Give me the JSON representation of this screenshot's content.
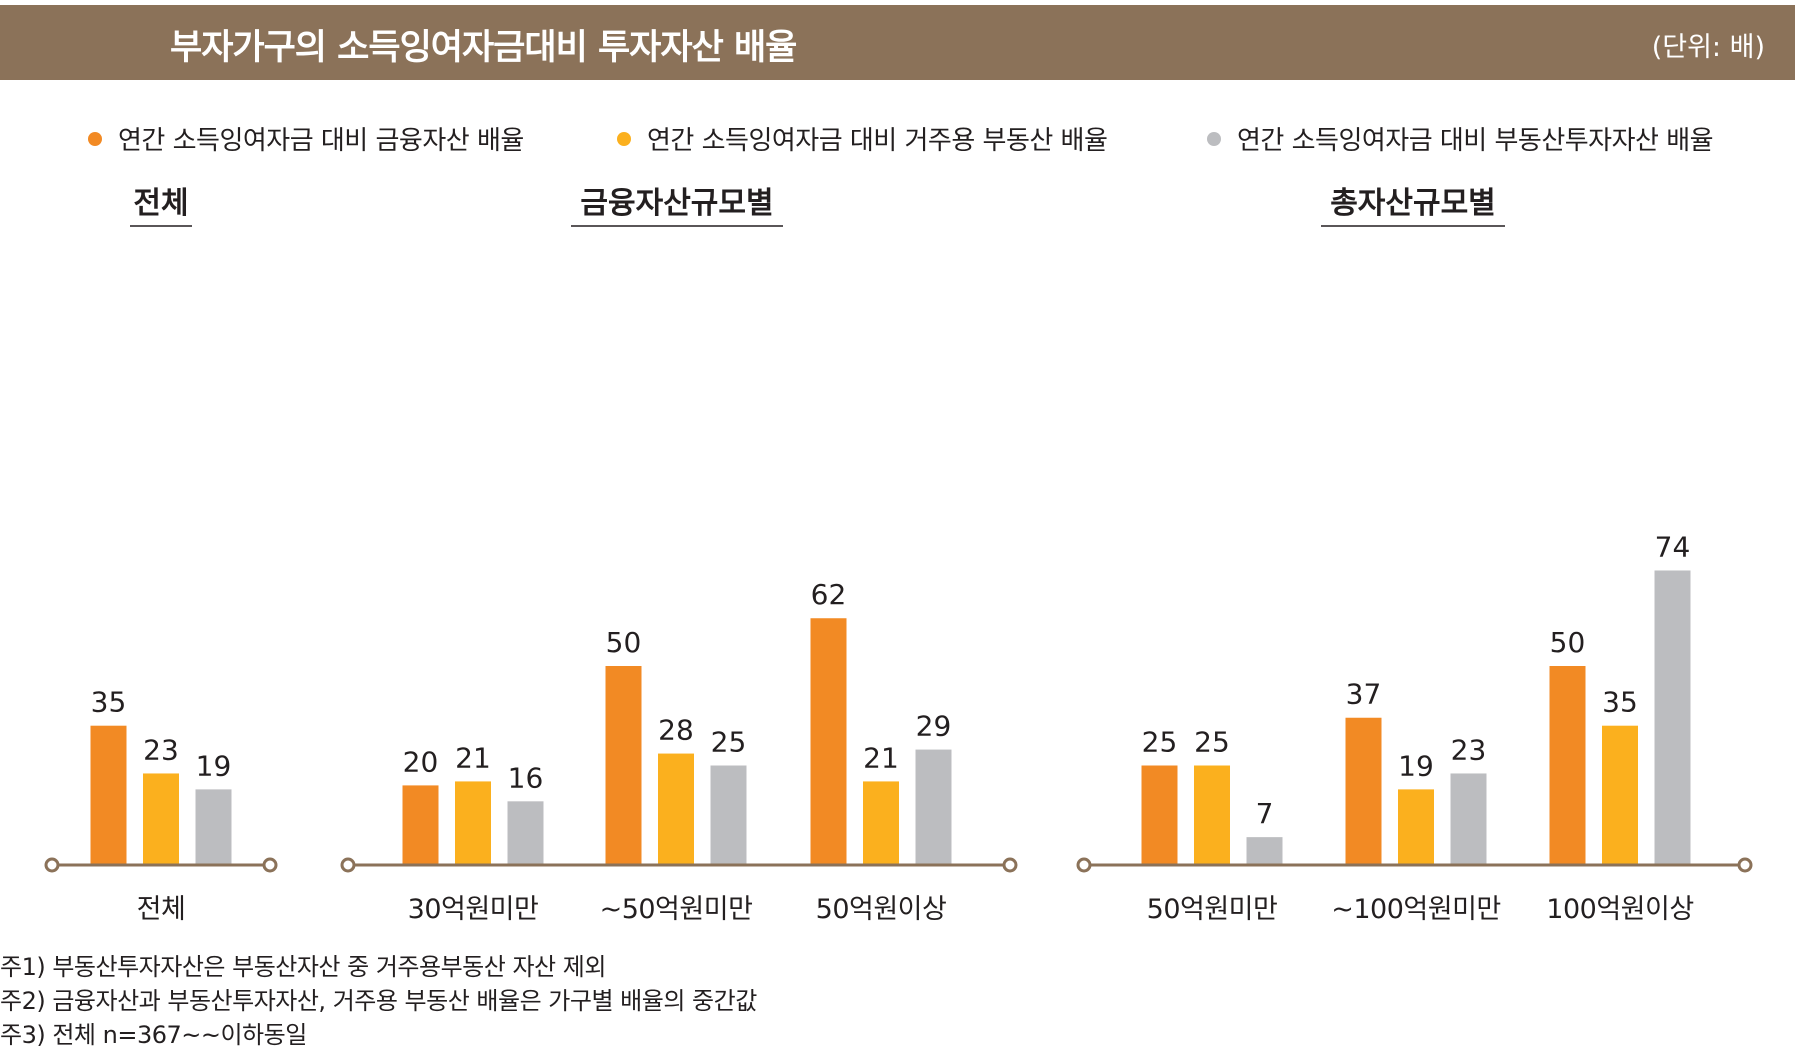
{
  "header": {
    "title": "부자가구의 소득잉여자금대비 투자자산 배율",
    "unit": "(단위: 배)"
  },
  "colors": {
    "header_bg": "#8b7259",
    "financial": "#f28a24",
    "residential": "#fbb01e",
    "investment": "#bcbdc0",
    "axis": "#8b7259"
  },
  "chart_data": {
    "type": "bar",
    "title": "부자가구의 소득잉여자금대비 투자자산 배율",
    "unit": "(단위: 배)",
    "series_names": [
      "연간 소득잉여자금 대비 금융자산 배율",
      "연간 소득잉여자금 대비 거주용 부동산 배율",
      "연간 소득잉여자금 대비 부동산투자자산 배율"
    ],
    "panels": [
      {
        "title": "전체",
        "categories": [
          "전체"
        ],
        "series": [
          {
            "name": "연간 소득잉여자금 대비 금융자산 배율",
            "values": [
              35
            ]
          },
          {
            "name": "연간 소득잉여자금 대비 거주용 부동산 배율",
            "values": [
              23
            ]
          },
          {
            "name": "연간 소득잉여자금 대비 부동산투자자산 배율",
            "values": [
              19
            ]
          }
        ]
      },
      {
        "title": "금융자산규모별",
        "categories": [
          "30억원미만",
          "~50억원미만",
          "50억원이상"
        ],
        "series": [
          {
            "name": "연간 소득잉여자금 대비 금융자산 배율",
            "values": [
              20,
              50,
              62
            ]
          },
          {
            "name": "연간 소득잉여자금 대비 거주용 부동산 배율",
            "values": [
              21,
              28,
              21
            ]
          },
          {
            "name": "연간 소득잉여자금 대비 부동산투자자산 배율",
            "values": [
              16,
              25,
              29
            ]
          }
        ]
      },
      {
        "title": "총자산규모별",
        "categories": [
          "50억원미만",
          "~100억원미만",
          "100억원이상"
        ],
        "series": [
          {
            "name": "연간 소득잉여자금 대비 금융자산 배율",
            "values": [
              25,
              37,
              50
            ]
          },
          {
            "name": "연간 소득잉여자금 대비 거주용 부동산 배율",
            "values": [
              25,
              19,
              35
            ]
          },
          {
            "name": "연간 소득잉여자금 대비 부동산투자자산 배율",
            "values": [
              7,
              23,
              74
            ]
          }
        ]
      }
    ],
    "ylim": [
      0,
      74
    ],
    "grid": false,
    "legend": "top"
  },
  "notes": [
    "주1) 부동산투자자산은 부동산자산 중 거주용부동산 자산 제외",
    "주2) 금융자산과 부동산투자자산, 거주용 부동산 배율은 가구별 배율의 중간값",
    "주3) 전체 n=367~~이하동일"
  ]
}
